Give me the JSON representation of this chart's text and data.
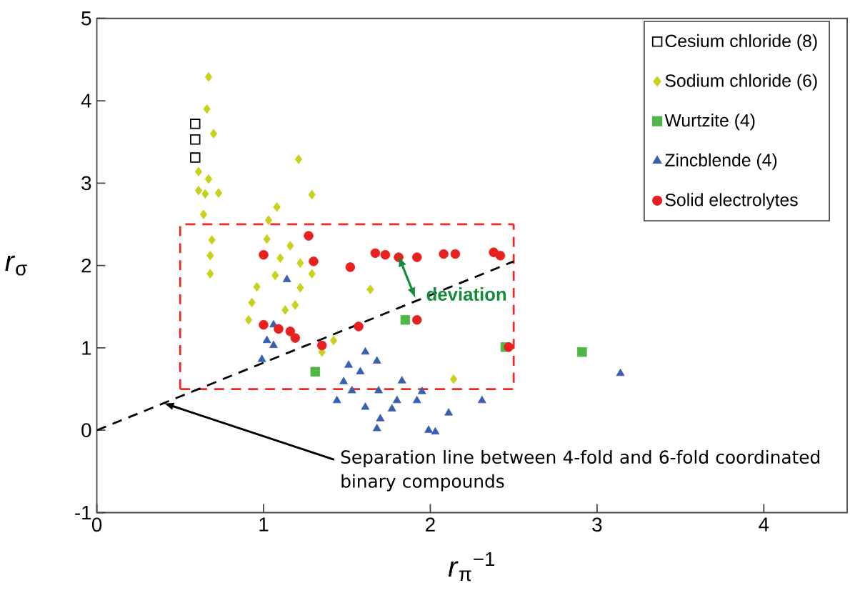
{
  "chart_data": {
    "type": "scatter",
    "xlabel": "*r*$_{π}$$^{−1}$",
    "ylabel": "*r*$_{σ}$",
    "xlim": [
      0,
      4.5
    ],
    "ylim": [
      -1,
      5
    ],
    "xticks": [
      0,
      1,
      2,
      3,
      4
    ],
    "yticks": [
      -1,
      0,
      1,
      2,
      3,
      4,
      5
    ],
    "grid": false,
    "legend": "top right",
    "series": [
      {
        "type": "line",
        "color": "#ee2a24",
        "line_style": "dashed",
        "marker": "none",
        "x": [
          0.5,
          2.5,
          2.5
        ],
        "values": [
          0.5,
          0.5,
          2.5
        ]
      },
      {
        "type": "line",
        "color": "#ee2a24",
        "line_style": "dashed",
        "marker": "none",
        "x": [
          0.5,
          0.5,
          2.5
        ],
        "values": [
          0.5,
          2.5,
          2.5
        ]
      },
      {
        "type": "line",
        "color": "#000000",
        "line_style": "dashed",
        "marker": "none",
        "x": [
          0,
          2.5
        ],
        "values": [
          0,
          2.05
        ]
      },
      {
        "name": "Cesium chloride (8)",
        "color": "#000000",
        "marker": "square",
        "x": [
          0.59,
          0.59,
          0.59
        ],
        "values": [
          3.72,
          3.53,
          3.31
        ]
      },
      {
        "name": "Sodium chloride (6)",
        "color": "#c8d21a",
        "marker": "diamond",
        "x": [
          0.67,
          0.66,
          0.7,
          0.61,
          0.67,
          0.61,
          0.65,
          0.73,
          0.64,
          0.69,
          0.68,
          0.68,
          1.21,
          1.29,
          1.08,
          1.03,
          1.02,
          1.16,
          1.1,
          1.22,
          1.29,
          1.07,
          1.22,
          0.96,
          1.64,
          0.93,
          1.19,
          1.13,
          0.91,
          1.42,
          1.35,
          2.14
        ],
        "values": [
          4.29,
          3.9,
          3.6,
          3.14,
          3.05,
          2.91,
          2.87,
          2.88,
          2.62,
          2.31,
          2.12,
          1.9,
          3.29,
          2.86,
          2.71,
          2.55,
          2.32,
          2.24,
          2.09,
          2.03,
          1.9,
          1.88,
          1.73,
          1.74,
          1.71,
          1.55,
          1.52,
          1.46,
          1.34,
          1.09,
          0.95,
          0.62
        ]
      },
      {
        "name": "Wurtzite (4)",
        "color": "#4db848",
        "marker": "square",
        "x": [
          1.31,
          1.85,
          2.45,
          2.91
        ],
        "values": [
          0.71,
          1.34,
          1.01,
          0.95
        ]
      },
      {
        "name": "Zincblende (4)",
        "color": "#3a5fb0",
        "marker": "triangle",
        "x": [
          1.14,
          1.06,
          1.02,
          1.06,
          0.99,
          1.51,
          1.61,
          1.68,
          1.58,
          1.48,
          1.44,
          1.53,
          1.61,
          1.69,
          1.83,
          1.8,
          1.77,
          1.7,
          1.68,
          1.99,
          1.95,
          1.92,
          2.11,
          2.03,
          2.31,
          3.14
        ],
        "values": [
          1.83,
          1.28,
          1.09,
          1.03,
          0.86,
          0.79,
          0.95,
          0.84,
          0.71,
          0.59,
          0.36,
          0.48,
          0.28,
          0.48,
          0.6,
          0.36,
          0.26,
          0.14,
          0.02,
          0.0,
          0.47,
          0.36,
          0.21,
          -0.02,
          0.36,
          0.69
        ]
      },
      {
        "name": "Solid electrolytes",
        "color": "#e8201f",
        "marker": "circle",
        "x": [
          1.27,
          1.0,
          1.3,
          1.52,
          1.67,
          1.73,
          1.81,
          1.92,
          2.08,
          2.15,
          2.38,
          2.42,
          1.0,
          1.09,
          1.16,
          1.19,
          1.57,
          1.35,
          1.92,
          2.47
        ],
        "values": [
          2.36,
          2.13,
          2.05,
          1.98,
          2.15,
          2.13,
          2.1,
          2.1,
          2.14,
          2.14,
          2.16,
          2.12,
          1.28,
          1.23,
          1.2,
          1.12,
          1.26,
          1.03,
          1.34,
          1.01
        ]
      }
    ],
    "annotations": [
      {
        "text": "deviation",
        "x": 1.86,
        "y": 1.86
      },
      {
        "text": "Separation line between 4-fold and 6-fold coordinated binary compounds",
        "x": 0.4,
        "y": 0.33
      }
    ]
  }
}
